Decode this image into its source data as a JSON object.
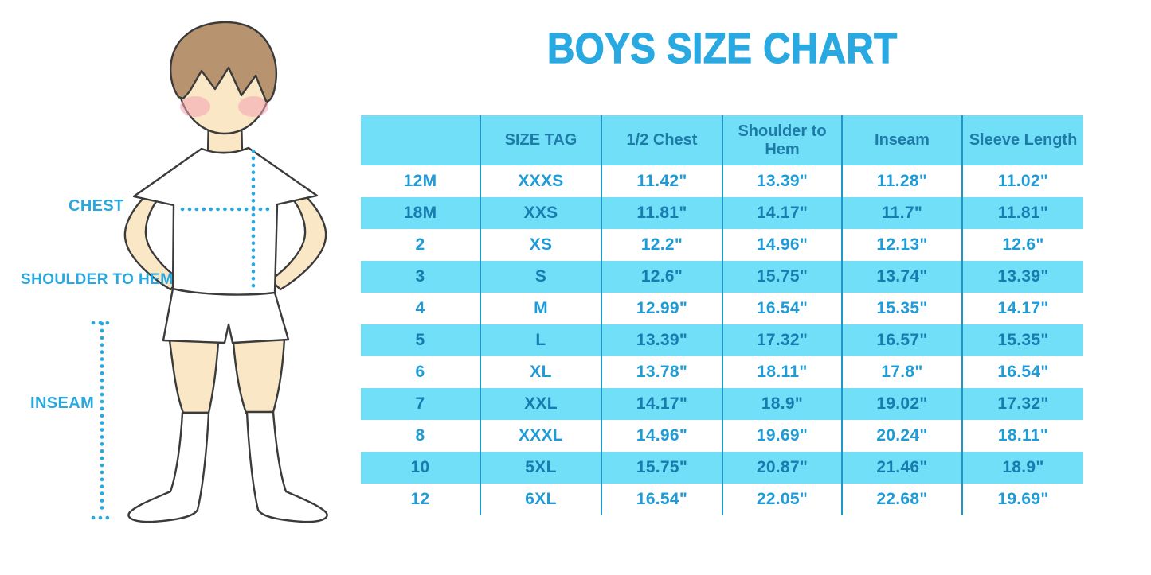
{
  "title": "BOYS SIZE CHART",
  "colors": {
    "accent_blue": "#29A9E1",
    "label_blue": "#29A8E0",
    "row_fill_cyan": "#72DFF8",
    "grid_line_blue": "#2196C8",
    "header_text": "#1E7BA8",
    "row_text_on_white": "#1F9CD8",
    "row_text_on_blue": "#187CB0",
    "skin": "#FAE7C6",
    "hair_brown": "#B7946F",
    "blush_pink": "#F2A3B3",
    "outline_dark": "#3B3B3B"
  },
  "diagram": {
    "labels": [
      {
        "id": "chest",
        "text": "CHEST"
      },
      {
        "id": "shoulder_to_hem",
        "text": "SHOULDER TO HEM"
      },
      {
        "id": "inseam",
        "text": "INSEAM"
      }
    ]
  },
  "chart_data": {
    "type": "table",
    "title": "BOYS SIZE CHART",
    "columns": [
      "",
      "SIZE TAG",
      "1/2 Chest",
      "Shoulder to Hem",
      "Inseam",
      "Sleeve Length"
    ],
    "rows": [
      [
        "12M",
        "XXXS",
        "11.42\"",
        "13.39\"",
        "11.28\"",
        "11.02\""
      ],
      [
        "18M",
        "XXS",
        "11.81\"",
        "14.17\"",
        "11.7\"",
        "11.81\""
      ],
      [
        "2",
        "XS",
        "12.2\"",
        "14.96\"",
        "12.13\"",
        "12.6\""
      ],
      [
        "3",
        "S",
        "12.6\"",
        "15.75\"",
        "13.74\"",
        "13.39\""
      ],
      [
        "4",
        "M",
        "12.99\"",
        "16.54\"",
        "15.35\"",
        "14.17\""
      ],
      [
        "5",
        "L",
        "13.39\"",
        "17.32\"",
        "16.57\"",
        "15.35\""
      ],
      [
        "6",
        "XL",
        "13.78\"",
        "18.11\"",
        "17.8\"",
        "16.54\""
      ],
      [
        "7",
        "XXL",
        "14.17\"",
        "18.9\"",
        "19.02\"",
        "17.32\""
      ],
      [
        "8",
        "XXXL",
        "14.96\"",
        "19.69\"",
        "20.24\"",
        "18.11\""
      ],
      [
        "10",
        "5XL",
        "15.75\"",
        "20.87\"",
        "21.46\"",
        "18.9\""
      ],
      [
        "12",
        "6XL",
        "16.54\"",
        "22.05\"",
        "22.68\"",
        "19.69\""
      ]
    ]
  }
}
